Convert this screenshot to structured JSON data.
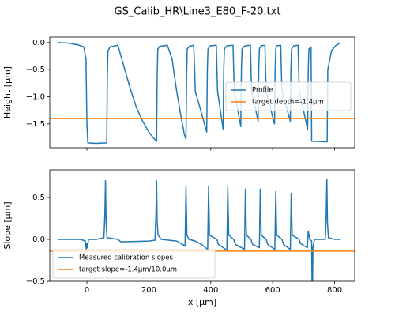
{
  "title": "GS_Calib_HR\\Line3_E80_F-20.txt",
  "chart_data": [
    {
      "type": "line",
      "ylabel": "Height [µm]",
      "xlim": [
        -120,
        865
      ],
      "ylim": [
        -1.94,
        0.1
      ],
      "xticks": [
        0,
        200,
        400,
        600,
        800
      ],
      "xtick_labels": false,
      "yticks": [
        {
          "value": 0,
          "label": "0.0"
        },
        {
          "value": -0.5,
          "label": "−0.5"
        },
        {
          "value": -1.0,
          "label": "−1.0"
        },
        {
          "value": -1.5,
          "label": "−1.5"
        }
      ],
      "legend": "center right",
      "series": [
        {
          "name": "Profile",
          "color": "#1f77b4",
          "x": [
            -95,
            -60,
            -30,
            -10,
            -3,
            0,
            3,
            30,
            64,
            66,
            68,
            75,
            100,
            120,
            140,
            160,
            180,
            200,
            215,
            225,
            227,
            229,
            235,
            260,
            275,
            290,
            305,
            315,
            320,
            322,
            324,
            330,
            345,
            348,
            350,
            370,
            387,
            389,
            391,
            398,
            418,
            420,
            422,
            440,
            442,
            444,
            452,
            472,
            474,
            476,
            497,
            499,
            501,
            510,
            528,
            530,
            532,
            553,
            555,
            557,
            562,
            575,
            577,
            579,
            606,
            608,
            610,
            613,
            626,
            628,
            630,
            657,
            659,
            661,
            668,
            682,
            684,
            686,
            713,
            715,
            717,
            724,
            726,
            776,
            778,
            790,
            805,
            820
          ],
          "values": [
            0,
            -0.01,
            -0.04,
            -0.08,
            -0.3,
            -1.5,
            -1.85,
            -1.86,
            -1.85,
            -0.6,
            -0.15,
            -0.08,
            -0.05,
            -0.45,
            -0.85,
            -1.2,
            -1.45,
            -1.65,
            -1.76,
            -1.82,
            -0.6,
            -0.12,
            -0.07,
            -0.05,
            -0.3,
            -0.9,
            -1.4,
            -1.7,
            -1.78,
            -0.6,
            -0.12,
            -0.07,
            -0.05,
            -0.5,
            -0.9,
            -1.3,
            -1.65,
            -0.5,
            -0.12,
            -0.06,
            -0.05,
            -0.5,
            -0.9,
            -1.6,
            -0.5,
            -0.12,
            -0.06,
            -0.05,
            -0.5,
            -0.9,
            -1.55,
            -0.5,
            -0.12,
            -0.06,
            -0.05,
            -0.5,
            -0.9,
            -1.45,
            -0.5,
            -0.12,
            -0.06,
            -0.05,
            -0.5,
            -0.9,
            -1.5,
            -0.5,
            -0.12,
            -0.06,
            -0.05,
            -0.5,
            -0.9,
            -1.45,
            -0.5,
            -0.12,
            -0.06,
            -0.05,
            -0.5,
            -0.9,
            -1.6,
            -0.5,
            -0.12,
            -0.08,
            -1.82,
            -1.83,
            -0.5,
            -0.15,
            -0.05,
            0
          ]
        },
        {
          "name": "target depth=-1.4µm",
          "color": "#ff7f0e",
          "hline": -1.4
        }
      ]
    },
    {
      "type": "line",
      "ylabel": "Slope [µm]",
      "xlabel": "x [µm]",
      "xlim": [
        -120,
        865
      ],
      "ylim": [
        -0.5,
        0.83
      ],
      "xticks": [
        0,
        200,
        400,
        600,
        800
      ],
      "xtick_labels": true,
      "yticks": [
        0.5,
        {
          "value": 0,
          "label": "0.0"
        },
        {
          "value": -0.5,
          "label": "−0.5"
        }
      ],
      "legend": "lower left",
      "series": [
        {
          "name": "Measured calibration slopes",
          "color": "#1f77b4",
          "x": [
            -95,
            -20,
            -5,
            -2,
            0,
            2,
            5,
            30,
            55,
            58,
            60,
            62,
            65,
            100,
            110,
            200,
            220,
            223,
            225,
            227,
            230,
            240,
            290,
            317,
            320,
            323,
            330,
            350,
            370,
            390,
            393,
            396,
            420,
            425,
            452,
            455,
            458,
            474,
            480,
            509,
            512,
            515,
            530,
            535,
            557,
            560,
            563,
            579,
            584,
            607,
            610,
            613,
            630,
            635,
            657,
            660,
            663,
            686,
            690,
            712,
            715,
            720,
            726,
            728,
            730,
            735,
            770,
            773,
            775,
            777,
            780,
            800,
            820
          ],
          "values": [
            0,
            0,
            -0.02,
            -0.12,
            -0.05,
            -0.1,
            0,
            0,
            0.02,
            0.3,
            0.7,
            0.2,
            0.02,
            0,
            -0.03,
            -0.02,
            -0.01,
            0.3,
            0.7,
            0.2,
            0.05,
            0,
            -0.02,
            -0.08,
            0.63,
            0.05,
            0,
            -0.02,
            -0.06,
            -0.12,
            0.63,
            0.05,
            0,
            -0.06,
            -0.13,
            0.62,
            0.05,
            0,
            -0.06,
            -0.12,
            0.6,
            0.05,
            0,
            -0.06,
            -0.1,
            0.6,
            0.05,
            0,
            -0.06,
            -0.12,
            0.57,
            0.05,
            0,
            -0.06,
            -0.12,
            0.55,
            0.05,
            0,
            -0.05,
            -0.1,
            0.1,
            0,
            -0.02,
            -0.9,
            -0.1,
            0,
            0,
            0.3,
            0.72,
            0.2,
            0.02,
            0,
            0
          ]
        },
        {
          "name": "target slope=-1.4µm/10.0µm",
          "color": "#ff7f0e",
          "hline": -0.14
        }
      ]
    }
  ]
}
